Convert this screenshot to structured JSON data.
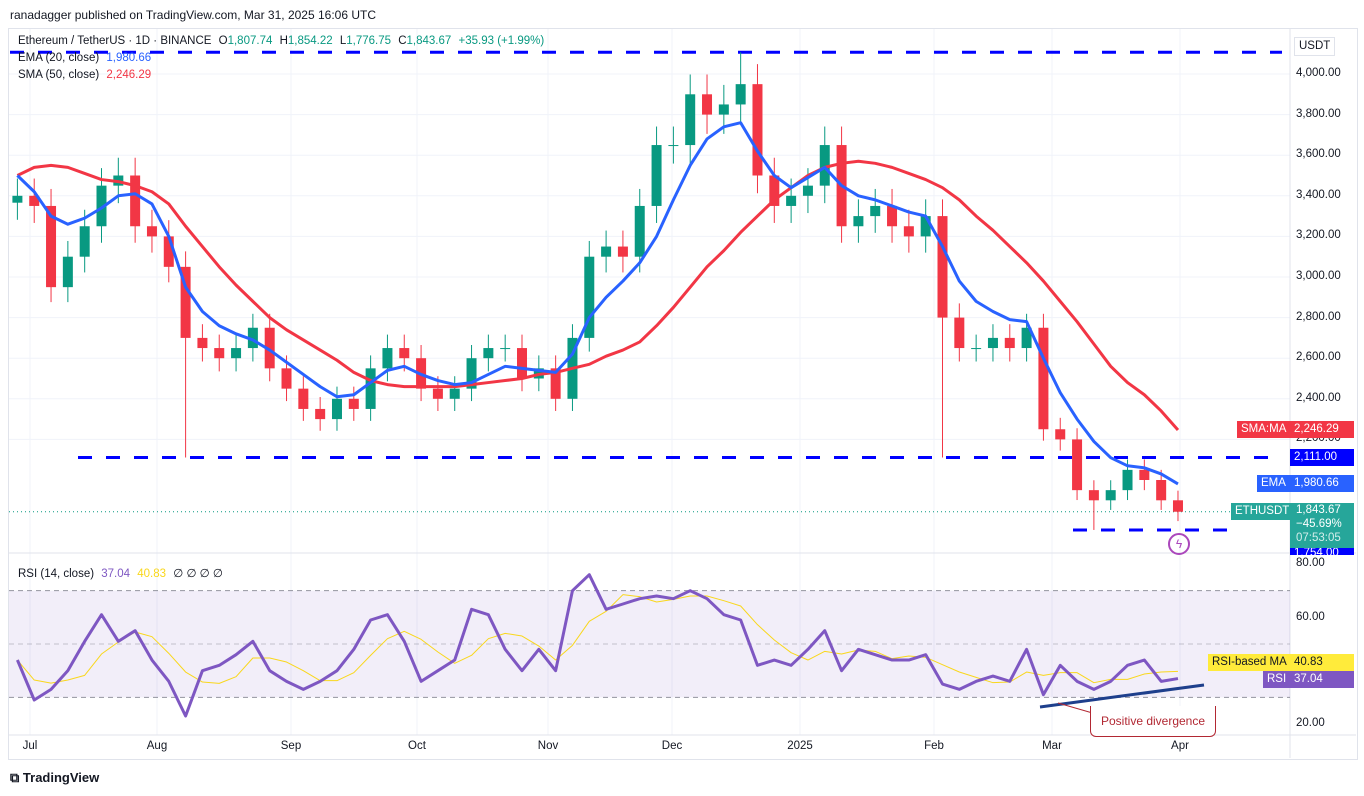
{
  "header": {
    "published": "ranadagger published on TradingView.com, Mar 31, 2025 16:06 UTC"
  },
  "legend": {
    "symbol": "Ethereum / TetherUS · 1D · BINANCE",
    "open_label": "O",
    "open": "1,807.74",
    "high_label": "H",
    "high": "1,854.22",
    "low_label": "L",
    "low": "1,776.75",
    "close_label": "C",
    "close": "1,843.67",
    "change": "+35.93 (+1.99%)",
    "ema_label": "EMA (20, close)",
    "ema_value": "1,980.66",
    "sma_label": "SMA (50, close)",
    "sma_value": "2,246.29",
    "rsi_label": "RSI (14, close)",
    "rsi_value": "37.04",
    "rsi_ma_value": "40.83",
    "rsi_extra": "∅ ∅ ∅ ∅"
  },
  "price_axis": {
    "currency": "USDT",
    "ticks": [
      "4,000.00",
      "3,800.00",
      "3,600.00",
      "3,400.00",
      "3,200.00",
      "3,000.00",
      "2,800.00",
      "2,600.00",
      "2,400.00",
      "2,200.00"
    ]
  },
  "rsi_axis": {
    "ticks": [
      "80.00",
      "60.00",
      "20.00"
    ]
  },
  "time_axis": {
    "ticks": [
      "Jul",
      "Aug",
      "Sep",
      "Oct",
      "Nov",
      "Dec",
      "2025",
      "Feb",
      "Mar",
      "Apr"
    ]
  },
  "badges": {
    "sma_name": "SMA:MA",
    "sma": "2,246.29",
    "level_2111": "2,111.00",
    "ema_name": "EMA",
    "ema": "1,980.66",
    "symbol": "ETHUSDT",
    "last": "1,843.67",
    "pct": "−45.69%",
    "countdown": "07:53:05",
    "level_1754": "1,754.00",
    "rsi_ma_name": "RSI-based MA",
    "rsi_ma": "40.83",
    "rsi_name": "RSI",
    "rsi": "37.04"
  },
  "annotation": {
    "divergence": "Positive divergence"
  },
  "branding": {
    "logo": "TradingView"
  },
  "colors": {
    "up": "#089981",
    "down": "#f23645",
    "ema": "#2962ff",
    "sma": "#f23645",
    "rsi": "#7e57c2",
    "rsi_ma": "#f9d71c",
    "levels": "#0000ff"
  },
  "chart_data": {
    "type": "candlestick",
    "symbol": "ETHUSDT",
    "start": "2024-06-28",
    "step_days": 4,
    "ylim": [
      1700,
      4150
    ],
    "closes": [
      3400,
      3350,
      2950,
      3100,
      3250,
      3450,
      3500,
      3250,
      3200,
      3050,
      2700,
      2650,
      2600,
      2650,
      2750,
      2550,
      2450,
      2350,
      2300,
      2400,
      2350,
      2550,
      2650,
      2600,
      2450,
      2400,
      2450,
      2600,
      2650,
      2650,
      2500,
      2550,
      2400,
      2700,
      3100,
      3150,
      3100,
      3350,
      3650,
      3650,
      3900,
      3800,
      3850,
      3950,
      3500,
      3350,
      3400,
      3450,
      3650,
      3250,
      3300,
      3350,
      3250,
      3200,
      3300,
      2800,
      2650,
      2650,
      2700,
      2650,
      2750,
      2250,
      2200,
      1950,
      1900,
      1950,
      2050,
      2000,
      1900,
      1843.67
    ],
    "notable_wicks": {
      "2024-08-05": 2111,
      "2024-12-16": 4107,
      "2025-02-03": 2111,
      "2025-03-11": 1754
    },
    "ema20": [
      3500,
      3420,
      3300,
      3260,
      3290,
      3340,
      3400,
      3410,
      3360,
      3200,
      2950,
      2830,
      2760,
      2720,
      2690,
      2640,
      2580,
      2520,
      2460,
      2410,
      2420,
      2480,
      2540,
      2560,
      2520,
      2490,
      2470,
      2480,
      2520,
      2560,
      2550,
      2540,
      2530,
      2620,
      2800,
      2900,
      2980,
      3070,
      3200,
      3380,
      3550,
      3680,
      3740,
      3760,
      3620,
      3500,
      3440,
      3490,
      3540,
      3450,
      3400,
      3380,
      3350,
      3320,
      3300,
      3150,
      2980,
      2880,
      2830,
      2790,
      2780,
      2600,
      2430,
      2300,
      2190,
      2110,
      2070,
      2060,
      2030,
      1980.66
    ],
    "sma50": [
      3500,
      3540,
      3550,
      3540,
      3510,
      3480,
      3470,
      3450,
      3420,
      3360,
      3250,
      3150,
      3050,
      2960,
      2880,
      2800,
      2740,
      2690,
      2640,
      2590,
      2530,
      2490,
      2470,
      2460,
      2460,
      2460,
      2460,
      2470,
      2480,
      2490,
      2500,
      2520,
      2530,
      2550,
      2570,
      2610,
      2640,
      2680,
      2760,
      2850,
      2950,
      3050,
      3130,
      3220,
      3300,
      3380,
      3440,
      3500,
      3540,
      3560,
      3570,
      3560,
      3540,
      3510,
      3480,
      3440,
      3380,
      3300,
      3230,
      3150,
      3070,
      2980,
      2880,
      2780,
      2670,
      2560,
      2480,
      2420,
      2340,
      2246.29
    ],
    "rsi": [
      44,
      29,
      33,
      40,
      51,
      61,
      51,
      55,
      44,
      36,
      23,
      40,
      42,
      46,
      51,
      40,
      36,
      33,
      36,
      40,
      48,
      59,
      61,
      51,
      36,
      40,
      44,
      63,
      61,
      48,
      40,
      48,
      40,
      70,
      76,
      63,
      65,
      67,
      68,
      67,
      70,
      67,
      61,
      59,
      42,
      44,
      42,
      48,
      55,
      40,
      48,
      46,
      44,
      44,
      46,
      35,
      33,
      36,
      38,
      36,
      48,
      31,
      42,
      36,
      33,
      36,
      42,
      44,
      36,
      37.04
    ],
    "rsi_levels": [
      70,
      50,
      30
    ],
    "horizontal_levels": [
      4107,
      2111,
      1754
    ]
  }
}
